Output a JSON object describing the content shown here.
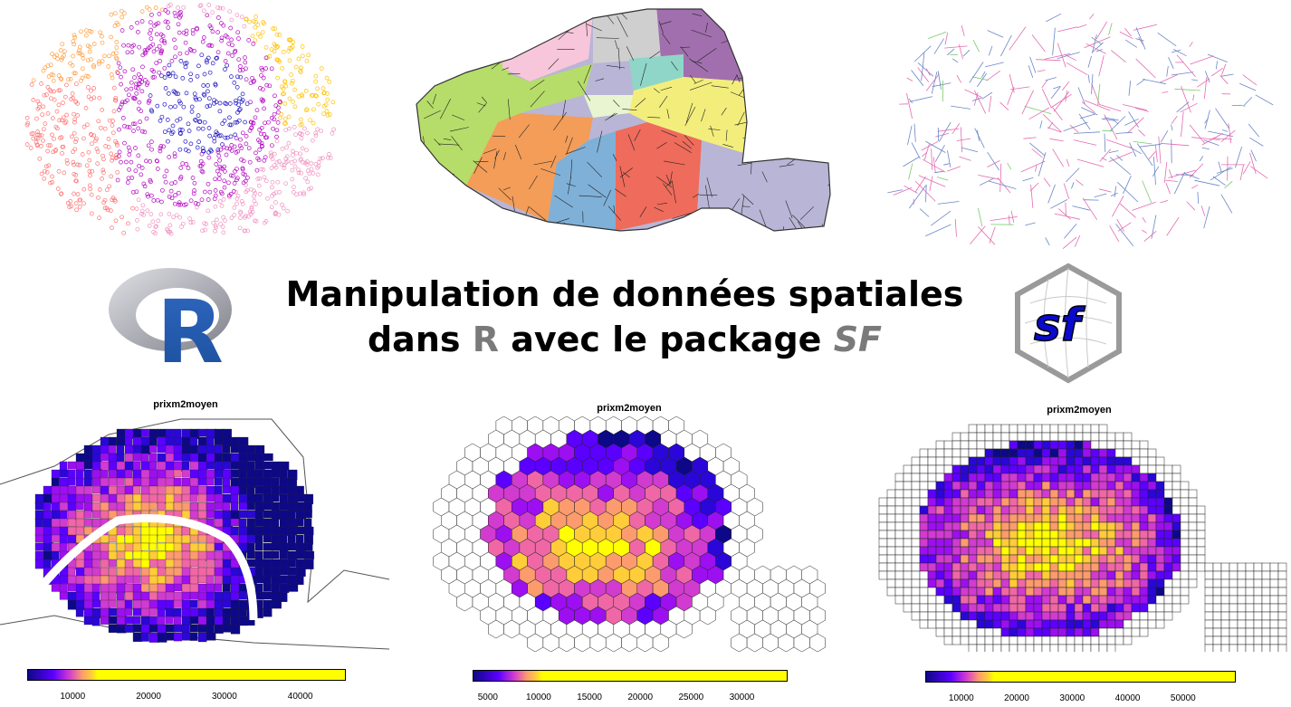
{
  "headline": {
    "line1": "Manipulation de données spatiales",
    "line2_prefix": "dans ",
    "line2_r": "R",
    "line2_mid": " avec le package ",
    "line2_sf": "SF"
  },
  "logos": {
    "r_logo_letter": "R",
    "sf_logo_text": "sf"
  },
  "maps": [
    {
      "title": "prixm2moyen",
      "kind": "polygons",
      "ticks": [
        "10000",
        "20000",
        "30000",
        "40000"
      ],
      "tick_values": [
        10000,
        20000,
        30000,
        40000
      ],
      "legend_range": [
        4000,
        46000
      ]
    },
    {
      "title": "prixm2moyen",
      "kind": "hexagon-grid",
      "ticks": [
        "5000",
        "10000",
        "15000",
        "20000",
        "25000",
        "30000"
      ],
      "tick_values": [
        5000,
        10000,
        15000,
        20000,
        25000,
        30000
      ],
      "legend_range": [
        3500,
        34500
      ]
    },
    {
      "title": "prixm2moyen",
      "kind": "square-grid",
      "ticks": [
        "10000",
        "20000",
        "30000",
        "40000",
        "50000"
      ],
      "tick_values": [
        10000,
        20000,
        30000,
        40000,
        50000
      ],
      "legend_range": [
        3500,
        59500
      ]
    }
  ],
  "colors": {
    "palette": [
      "#0d0887",
      "#2a06d8",
      "#5b00ff",
      "#9c0ff0",
      "#d13bd0",
      "#f067a6",
      "#fb9b6e",
      "#ffcc3a",
      "#ffff00"
    ],
    "top_points": [
      "#ff6f6f",
      "#f090c0",
      "#b000c0",
      "#1a10c0",
      "#ff9a3a",
      "#ffc000"
    ],
    "arrondissements": [
      "#f7c6da",
      "#cfcfcf",
      "#a16fae",
      "#b6dd6a",
      "#f39d58",
      "#7fb0d8",
      "#ef6b5b",
      "#b9b5d6",
      "#f3ee7c",
      "#8fd6c8"
    ],
    "network": [
      "#6b86c7",
      "#e46bb0",
      "#7ac96a"
    ]
  }
}
